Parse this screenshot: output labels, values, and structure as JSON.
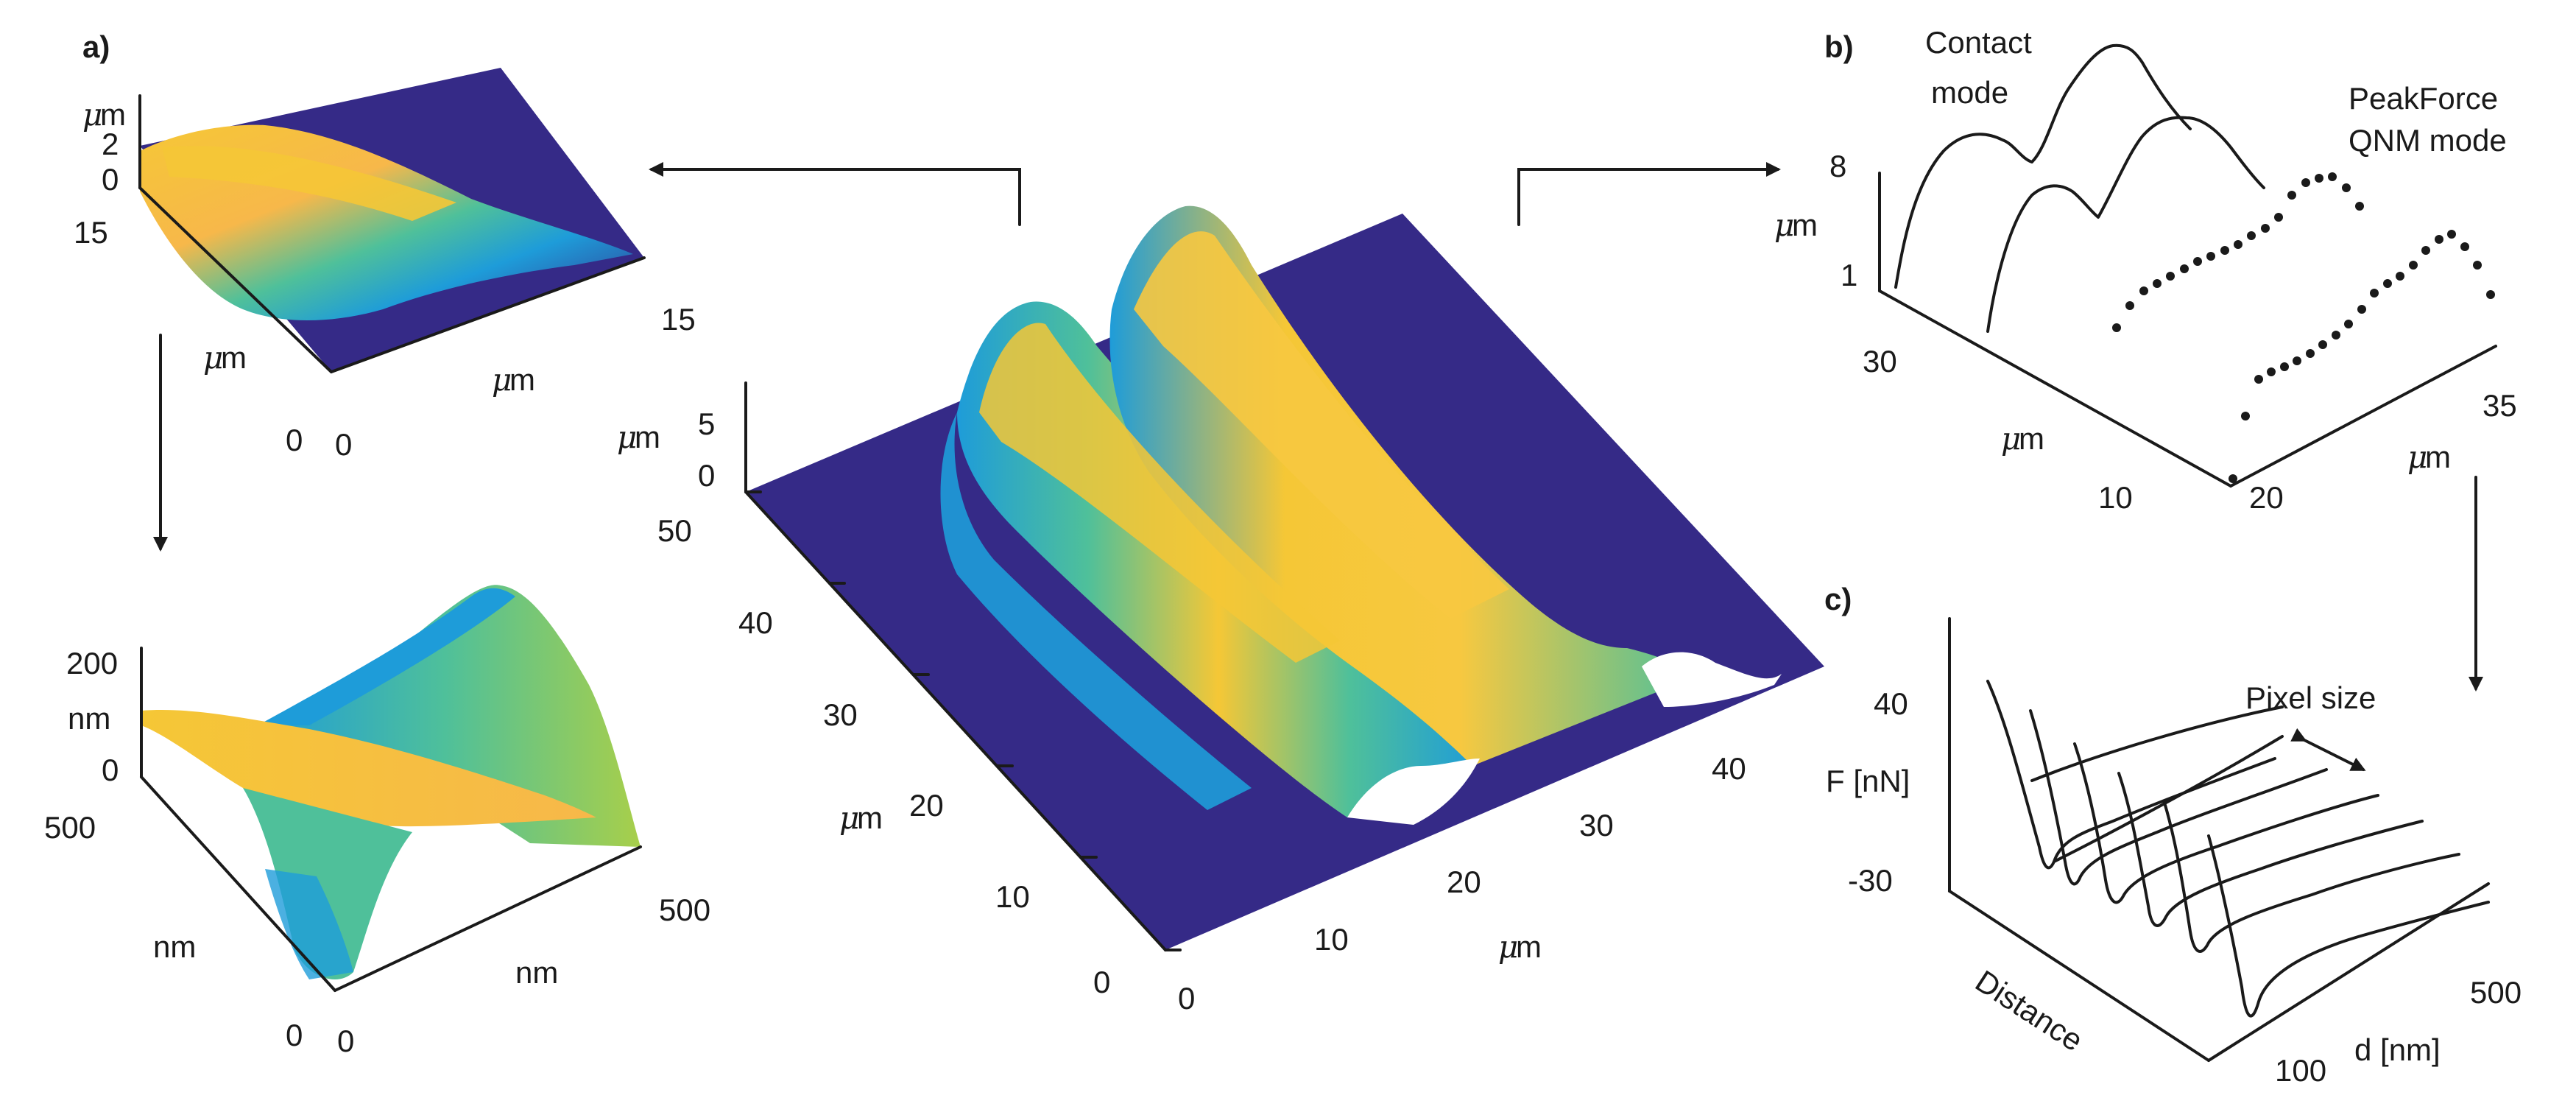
{
  "panel_labels": {
    "a": "a)",
    "b": "b)",
    "c": "c)"
  },
  "colors": {
    "low": "#352a87",
    "mid": "#1e9cd9",
    "midhigh": "#4fc09a",
    "high": "#f5c736",
    "peak": "#f9e330"
  },
  "micro": "μ",
  "panel_a_top": {
    "z_unit": "m",
    "z_ticks": [
      "2",
      "0"
    ],
    "y_unit": "m",
    "y_ticks": [
      "15",
      "0"
    ],
    "x_unit": "m",
    "x_ticks": [
      "0",
      "15"
    ]
  },
  "panel_a_bottom": {
    "z_unit": "nm",
    "z_ticks": [
      "200",
      "0"
    ],
    "y_unit": "nm",
    "y_ticks": [
      "500",
      "0"
    ],
    "x_unit": "nm",
    "x_ticks": [
      "0",
      "500"
    ]
  },
  "center": {
    "z_unit": "m",
    "z_ticks": [
      "5",
      "0"
    ],
    "y_unit": "m",
    "y_ticks": [
      "50",
      "40",
      "30",
      "20",
      "10",
      "0"
    ],
    "x_unit": "m",
    "x_ticks": [
      "0",
      "10",
      "20",
      "30",
      "40"
    ]
  },
  "panel_b": {
    "label_contact": "Contact mode",
    "label_contact_1": "Contact",
    "label_contact_2": "mode",
    "label_qnm_1": "PeakForce",
    "label_qnm_2": "QNM mode",
    "z_unit": "m",
    "z_ticks": [
      "8",
      "1"
    ],
    "y_unit": "m",
    "y_ticks": [
      "30",
      "10"
    ],
    "x_unit": "m",
    "x_ticks": [
      "20",
      "35"
    ]
  },
  "panel_c": {
    "y_label": "F [nN]",
    "y_ticks": [
      "40",
      "-30"
    ],
    "depth_label": "Distance",
    "x_label": "d [nm]",
    "x_ticks": [
      "100",
      "500"
    ],
    "annotation": "Pixel size"
  }
}
